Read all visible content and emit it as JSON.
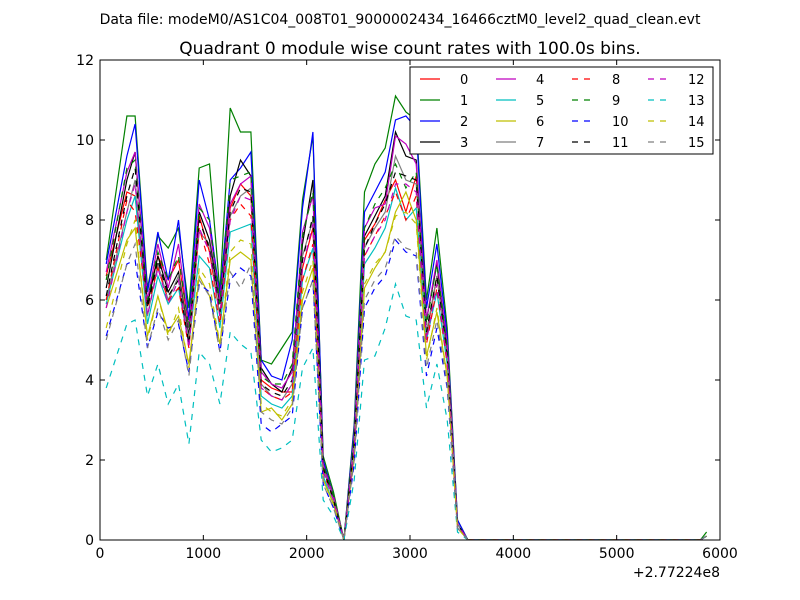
{
  "chart_data": {
    "type": "line",
    "file_label": "Data file: modeM0/AS1C04_008T01_9000002434_16466cztM0_level2_quad_clean.evt",
    "title": "Quadrant 0 module wise count rates with 100.0s bins.",
    "xlabel": "",
    "ylabel": "",
    "xlim": [
      0,
      6000
    ],
    "ylim": [
      0,
      12
    ],
    "x_ticks": [
      0,
      1000,
      2000,
      3000,
      4000,
      5000,
      6000
    ],
    "x_tick_labels": [
      "0",
      "1000",
      "2000",
      "3000",
      "4000",
      "5000",
      "6000"
    ],
    "y_ticks": [
      0,
      2,
      4,
      6,
      8,
      10,
      12
    ],
    "y_tick_labels": [
      "0",
      "2",
      "4",
      "6",
      "8",
      "10",
      "12"
    ],
    "x_offset_label": "+2.77224e8",
    "grid": false,
    "legend_position": "top-right",
    "legend_columns": 4,
    "x": [
      60,
      260,
      340,
      460,
      560,
      660,
      760,
      860,
      960,
      1060,
      1160,
      1260,
      1360,
      1460,
      1560,
      1660,
      1760,
      1860,
      1960,
      2060,
      2160,
      2260,
      2360,
      2460,
      2560,
      2660,
      2760,
      2860,
      2960,
      3060,
      3160,
      3260,
      3360,
      3460,
      3560,
      5810,
      5870
    ],
    "series": [
      {
        "name": "0",
        "color": "#ff0000",
        "dash": "solid",
        "values": [
          6.6,
          8.7,
          8.6,
          6.0,
          7.1,
          6.5,
          7.0,
          5.3,
          8.1,
          7.2,
          5.6,
          8.3,
          8.9,
          8.6,
          4.0,
          3.8,
          3.7,
          3.7,
          6.8,
          7.8,
          1.8,
          1.0,
          0.0,
          2.4,
          7.5,
          7.9,
          8.5,
          9.0,
          8.2,
          9.1,
          5.1,
          6.6,
          4.6,
          0.4,
          0.0,
          0.0,
          0.1
        ]
      },
      {
        "name": "1",
        "color": "#008000",
        "dash": "solid",
        "values": [
          7.0,
          10.6,
          10.6,
          6.3,
          7.6,
          7.3,
          7.8,
          5.8,
          9.3,
          9.4,
          6.2,
          10.8,
          10.2,
          10.2,
          4.5,
          4.4,
          4.8,
          5.2,
          8.5,
          10.1,
          2.1,
          1.2,
          0.0,
          2.9,
          8.7,
          9.4,
          9.8,
          11.1,
          10.7,
          10.5,
          6.0,
          7.8,
          5.3,
          0.5,
          0.0,
          0.0,
          0.2
        ]
      },
      {
        "name": "2",
        "color": "#0000ff",
        "dash": "solid",
        "values": [
          6.9,
          9.6,
          10.4,
          6.2,
          7.7,
          6.5,
          8.0,
          5.5,
          9.0,
          8.0,
          6.1,
          9.0,
          9.3,
          9.7,
          4.5,
          4.1,
          4.0,
          5.0,
          8.3,
          10.2,
          2.0,
          1.1,
          0.0,
          2.8,
          8.2,
          8.7,
          9.2,
          10.5,
          10.6,
          10.3,
          5.8,
          7.4,
          5.1,
          0.5,
          0.0,
          0.0,
          0.1
        ]
      },
      {
        "name": "3",
        "color": "#000000",
        "dash": "solid",
        "values": [
          6.3,
          9.0,
          9.7,
          5.9,
          7.1,
          6.2,
          6.7,
          5.1,
          8.2,
          7.5,
          5.9,
          8.6,
          9.5,
          9.1,
          4.3,
          3.9,
          3.7,
          4.3,
          7.4,
          9.0,
          1.9,
          1.1,
          0.0,
          2.6,
          7.6,
          8.1,
          8.6,
          10.2,
          9.6,
          9.5,
          5.5,
          6.9,
          4.8,
          0.4,
          0.0,
          0.0,
          0.1
        ]
      },
      {
        "name": "4",
        "color": "#bf00bf",
        "dash": "solid",
        "values": [
          6.7,
          9.2,
          9.7,
          6.0,
          7.4,
          6.3,
          7.4,
          5.3,
          8.4,
          7.8,
          6.0,
          8.4,
          8.9,
          9.1,
          4.2,
          3.9,
          3.8,
          4.2,
          7.7,
          8.6,
          1.9,
          1.1,
          0.0,
          2.6,
          7.8,
          8.3,
          8.4,
          10.1,
          9.9,
          9.4,
          5.5,
          7.0,
          4.9,
          0.4,
          0.0,
          0.0,
          0.1
        ]
      },
      {
        "name": "5",
        "color": "#00bfbf",
        "dash": "solid",
        "values": [
          5.9,
          8.0,
          8.6,
          5.4,
          6.6,
          5.9,
          6.3,
          4.9,
          7.1,
          6.8,
          5.3,
          7.7,
          7.8,
          7.9,
          3.6,
          3.4,
          3.3,
          3.6,
          6.5,
          7.3,
          1.6,
          0.9,
          0.0,
          2.3,
          6.9,
          7.3,
          7.8,
          8.8,
          8.0,
          8.3,
          5.0,
          6.2,
          4.4,
          0.4,
          0.0,
          0.0,
          0.1
        ]
      },
      {
        "name": "6",
        "color": "#bfbf00",
        "dash": "solid",
        "values": [
          5.8,
          7.5,
          7.8,
          5.1,
          6.1,
          5.2,
          5.6,
          4.4,
          6.6,
          6.1,
          4.9,
          7.0,
          7.2,
          7.0,
          3.2,
          3.3,
          3.0,
          3.4,
          6.0,
          6.8,
          1.5,
          0.9,
          0.0,
          2.1,
          6.3,
          6.8,
          7.2,
          8.2,
          8.7,
          8.0,
          4.6,
          5.7,
          4.1,
          0.3,
          0.0,
          0.0,
          0.1
        ]
      },
      {
        "name": "7",
        "color": "#7f7f7f",
        "dash": "solid",
        "values": [
          6.0,
          8.2,
          9.0,
          5.6,
          6.9,
          6.0,
          6.6,
          5.0,
          7.7,
          7.4,
          5.6,
          8.1,
          8.6,
          8.8,
          3.9,
          3.6,
          3.5,
          3.9,
          7.1,
          8.0,
          1.8,
          1.0,
          0.0,
          2.5,
          7.3,
          7.8,
          8.2,
          9.6,
          9.0,
          8.9,
          5.2,
          6.6,
          4.6,
          0.4,
          0.0,
          0.0,
          0.1
        ]
      },
      {
        "name": "8",
        "color": "#ff0000",
        "dash": "dashed",
        "values": [
          6.0,
          8.5,
          8.2,
          5.8,
          6.8,
          6.0,
          6.3,
          4.8,
          7.8,
          6.9,
          5.4,
          8.0,
          8.4,
          8.1,
          3.8,
          3.6,
          3.5,
          3.7,
          6.5,
          7.4,
          1.7,
          1.0,
          0.0,
          2.3,
          7.1,
          7.6,
          8.1,
          8.7,
          8.0,
          8.6,
          4.9,
          6.3,
          4.4,
          0.4,
          0.0,
          0.0,
          0.1
        ]
      },
      {
        "name": "9",
        "color": "#008000",
        "dash": "dashed",
        "values": [
          6.5,
          9.3,
          9.5,
          6.0,
          7.2,
          6.5,
          7.1,
          5.3,
          8.3,
          8.0,
          5.9,
          9.0,
          9.1,
          9.2,
          4.1,
          3.9,
          3.9,
          4.4,
          7.6,
          8.7,
          1.9,
          1.1,
          0.0,
          2.6,
          7.8,
          8.4,
          8.8,
          9.4,
          8.8,
          9.2,
          5.4,
          6.9,
          4.8,
          0.4,
          0.0,
          0.0,
          0.1
        ]
      },
      {
        "name": "10",
        "color": "#0000ff",
        "dash": "dashed",
        "values": [
          5.1,
          6.9,
          7.0,
          4.8,
          5.7,
          5.3,
          5.4,
          4.2,
          6.4,
          6.2,
          4.7,
          6.5,
          6.8,
          6.6,
          2.9,
          2.7,
          2.9,
          3.1,
          5.8,
          6.5,
          1.4,
          0.8,
          0.0,
          1.9,
          5.8,
          6.3,
          6.6,
          7.5,
          7.2,
          7.1,
          4.1,
          5.3,
          3.8,
          0.3,
          0.0,
          0.0,
          0.1
        ]
      },
      {
        "name": "11",
        "color": "#000000",
        "dash": "dashed",
        "values": [
          6.1,
          8.6,
          9.3,
          5.8,
          7.0,
          6.1,
          6.5,
          4.9,
          8.0,
          7.3,
          5.7,
          8.2,
          8.8,
          8.7,
          3.9,
          3.7,
          3.6,
          4.0,
          7.0,
          8.1,
          1.8,
          1.0,
          0.0,
          2.4,
          7.3,
          7.9,
          8.4,
          9.2,
          9.1,
          9.0,
          5.2,
          6.6,
          4.6,
          0.4,
          0.0,
          0.0,
          0.1
        ]
      },
      {
        "name": "12",
        "color": "#bf00bf",
        "dash": "dashed",
        "values": [
          5.8,
          8.2,
          8.9,
          5.6,
          6.8,
          5.9,
          6.5,
          4.8,
          7.8,
          7.2,
          5.6,
          8.0,
          8.6,
          8.5,
          3.8,
          3.6,
          3.5,
          3.9,
          6.8,
          7.9,
          1.7,
          1.0,
          0.0,
          2.3,
          7.1,
          7.6,
          8.0,
          8.9,
          8.9,
          8.7,
          5.0,
          6.4,
          4.5,
          0.4,
          0.0,
          0.0,
          0.1
        ]
      },
      {
        "name": "13",
        "color": "#00bfbf",
        "dash": "dashed",
        "values": [
          3.8,
          5.4,
          5.5,
          3.6,
          4.4,
          3.4,
          3.9,
          2.4,
          4.7,
          4.4,
          3.4,
          5.2,
          4.9,
          4.7,
          2.5,
          2.2,
          2.3,
          2.5,
          4.3,
          4.8,
          1.0,
          0.6,
          0.0,
          1.5,
          4.5,
          4.6,
          5.3,
          6.4,
          5.6,
          5.5,
          3.3,
          4.4,
          3.0,
          0.2,
          0.0,
          0.0,
          0.1
        ]
      },
      {
        "name": "14",
        "color": "#bfbf00",
        "dash": "dashed",
        "values": [
          5.3,
          7.4,
          8.0,
          5.0,
          6.1,
          5.1,
          5.8,
          4.3,
          6.8,
          6.4,
          4.9,
          7.2,
          7.5,
          7.4,
          3.4,
          3.2,
          3.1,
          3.5,
          6.2,
          7.0,
          1.5,
          0.9,
          0.0,
          2.1,
          6.4,
          6.9,
          7.2,
          8.1,
          8.2,
          7.9,
          4.5,
          5.8,
          4.1,
          0.3,
          0.0,
          0.0,
          0.1
        ]
      },
      {
        "name": "15",
        "color": "#7f7f7f",
        "dash": "dashed",
        "values": [
          5.0,
          6.9,
          7.4,
          4.8,
          5.8,
          5.0,
          5.5,
          4.1,
          6.5,
          6.1,
          4.7,
          6.7,
          6.3,
          6.9,
          3.2,
          3.0,
          2.9,
          3.3,
          5.8,
          6.5,
          1.4,
          0.8,
          0.0,
          2.0,
          6.0,
          6.5,
          6.8,
          7.6,
          7.3,
          7.2,
          4.3,
          5.5,
          3.9,
          0.3,
          0.0,
          0.0,
          0.1
        ]
      }
    ]
  }
}
